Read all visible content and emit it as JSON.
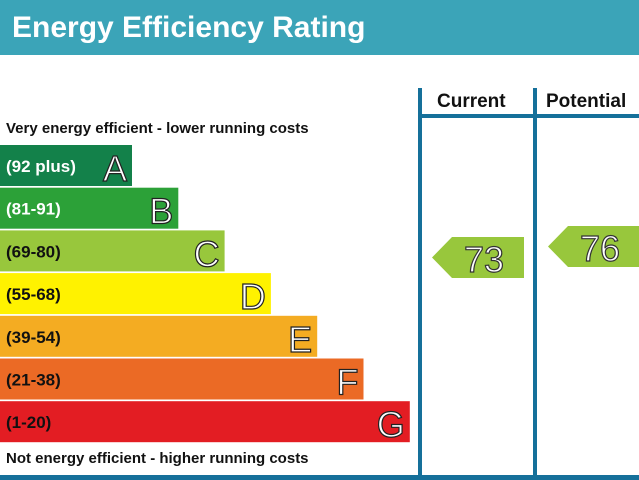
{
  "title": "Energy Efficiency Rating",
  "chart_data": {
    "type": "bar",
    "title": "Energy Efficiency Rating",
    "top_note": "Very energy efficient - lower running costs",
    "bottom_note": "Not energy efficient - higher running costs",
    "columns": [
      "Current",
      "Potential"
    ],
    "bands": [
      {
        "letter": "A",
        "range": "(92 plus)",
        "min": 92,
        "max": 100,
        "color": "#13814a"
      },
      {
        "letter": "B",
        "range": "(81-91)",
        "min": 81,
        "max": 91,
        "color": "#2ca138"
      },
      {
        "letter": "C",
        "range": "(69-80)",
        "min": 69,
        "max": 80,
        "color": "#98c73c"
      },
      {
        "letter": "D",
        "range": "(55-68)",
        "min": 55,
        "max": 68,
        "color": "#fff200"
      },
      {
        "letter": "E",
        "range": "(39-54)",
        "min": 39,
        "max": 54,
        "color": "#f4ac22"
      },
      {
        "letter": "F",
        "range": "(21-38)",
        "min": 21,
        "max": 38,
        "color": "#eb6a25"
      },
      {
        "letter": "G",
        "range": "(1-20)",
        "min": 1,
        "max": 20,
        "color": "#e31d23"
      }
    ],
    "current": {
      "value": 73,
      "band": "C",
      "color": "#98c73c"
    },
    "potential": {
      "value": 76,
      "band": "C",
      "color": "#98c73c"
    },
    "frame_color": "#15709a"
  }
}
